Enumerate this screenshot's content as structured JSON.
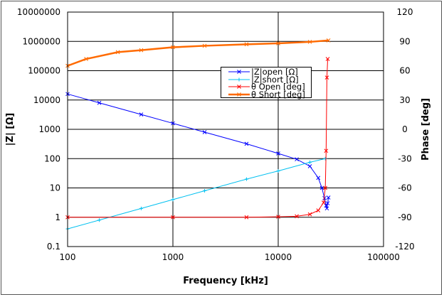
{
  "chart_data": {
    "type": "line",
    "xlabel": "Frequency [kHz]",
    "ylabel": "|Z| [Ω]",
    "y2label": "Phase [deg]",
    "xscale": "log",
    "yscale": "log",
    "xlim": [
      100,
      100000
    ],
    "ylim": [
      0.1,
      10000000
    ],
    "y2lim": [
      -120,
      120
    ],
    "grid": true,
    "legend_position": "upper-center-right",
    "x_ticks": [
      "100",
      "1000",
      "10000",
      "100000"
    ],
    "y_ticks": [
      "0.1",
      "1",
      "10",
      "100",
      "1000",
      "10000",
      "100000",
      "1000000",
      "10000000"
    ],
    "y2_ticks": [
      "-120",
      "-90",
      "-60",
      "-30",
      "0",
      "30",
      "60",
      "90",
      "120"
    ],
    "series": [
      {
        "name": "|Z|open [Ω]",
        "axis": "left",
        "color": "#0000ff",
        "marker": "x",
        "x": [
          100,
          200,
          500,
          1000,
          2000,
          5000,
          10000,
          15000,
          20000,
          24000,
          26000,
          27500,
          28500,
          29000,
          29500,
          30000
        ],
        "y": [
          16000,
          8000,
          3200,
          1600,
          800,
          320,
          150,
          95,
          55,
          22,
          10,
          4.5,
          2.5,
          2,
          3,
          4.7
        ]
      },
      {
        "name": "|Z|short [Ω]",
        "axis": "left",
        "color": "#00c0f0",
        "marker": "+",
        "x": [
          100,
          200,
          500,
          1000,
          2000,
          5000,
          10000,
          20000,
          28000
        ],
        "y": [
          0.4,
          0.8,
          2,
          4,
          8,
          20,
          38,
          75,
          100
        ]
      },
      {
        "name": "θ Open [deg]",
        "axis": "right",
        "color": "#ff0000",
        "marker": "x",
        "x": [
          100,
          1000,
          5000,
          10000,
          15000,
          20000,
          24000,
          27000,
          28000,
          28500,
          29000,
          29500
        ],
        "y": [
          -90,
          -90,
          -90,
          -89.5,
          -89,
          -87,
          -83,
          -75,
          -60,
          -22,
          53,
          72
        ]
      },
      {
        "name": "θ Short [deg]",
        "axis": "right",
        "color": "#ff6a00",
        "marker": "x",
        "x": [
          100,
          150,
          300,
          500,
          1000,
          2000,
          5000,
          10000,
          20000,
          30000
        ],
        "y": [
          65,
          72,
          79,
          81,
          84,
          85.5,
          87,
          88,
          89.5,
          91
        ]
      }
    ]
  }
}
